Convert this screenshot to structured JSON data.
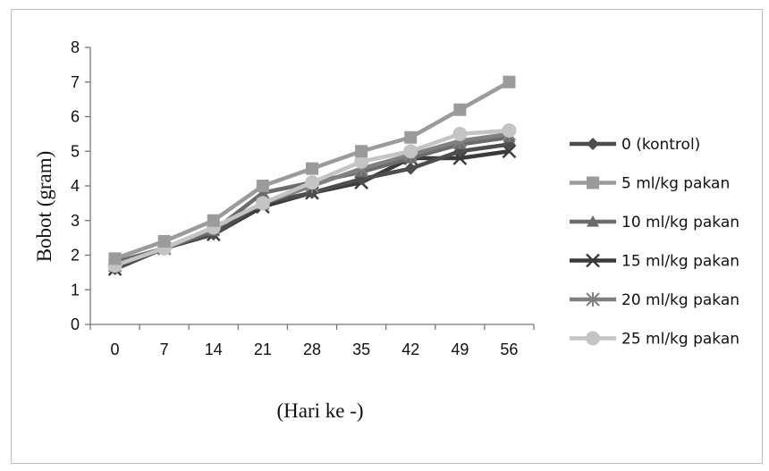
{
  "chart_data": {
    "type": "line",
    "title": "",
    "xlabel": "(Hari ke -)",
    "ylabel": "Bobot (gram)",
    "categories": [
      "0",
      "7",
      "14",
      "21",
      "28",
      "35",
      "42",
      "49",
      "56"
    ],
    "ylim": [
      0,
      8
    ],
    "yticks": [
      "0",
      "1",
      "2",
      "3",
      "4",
      "5",
      "6",
      "7",
      "8"
    ],
    "grid": false,
    "legend": "right",
    "series": [
      {
        "name": "0 (kontrol)",
        "marker": "diamond",
        "color": "#4d4d4d",
        "values": [
          1.6,
          2.2,
          2.6,
          3.5,
          3.8,
          4.2,
          4.5,
          5.0,
          5.2
        ]
      },
      {
        "name": "5 ml/kg pakan",
        "marker": "square",
        "color": "#9b9b9b",
        "values": [
          1.9,
          2.4,
          3.0,
          4.0,
          4.5,
          5.0,
          5.4,
          6.2,
          7.0
        ]
      },
      {
        "name": "10 ml/kg pakan",
        "marker": "triangle",
        "color": "#6b6b6b",
        "values": [
          1.8,
          2.2,
          2.7,
          3.8,
          4.1,
          4.4,
          4.8,
          5.2,
          5.4
        ]
      },
      {
        "name": "15 ml/kg pakan",
        "marker": "x",
        "color": "#3a3a3a",
        "values": [
          1.6,
          2.2,
          2.6,
          3.4,
          3.8,
          4.1,
          4.8,
          4.8,
          5.0
        ]
      },
      {
        "name": "20 ml/kg pakan",
        "marker": "asterisk",
        "color": "#808080",
        "values": [
          1.7,
          2.2,
          2.8,
          3.5,
          4.0,
          4.5,
          4.9,
          5.3,
          5.5
        ]
      },
      {
        "name": "25 ml/kg pakan",
        "marker": "circle",
        "color": "#c4c4c4",
        "values": [
          1.7,
          2.2,
          2.8,
          3.5,
          4.1,
          4.7,
          5.0,
          5.5,
          5.6
        ]
      }
    ]
  }
}
